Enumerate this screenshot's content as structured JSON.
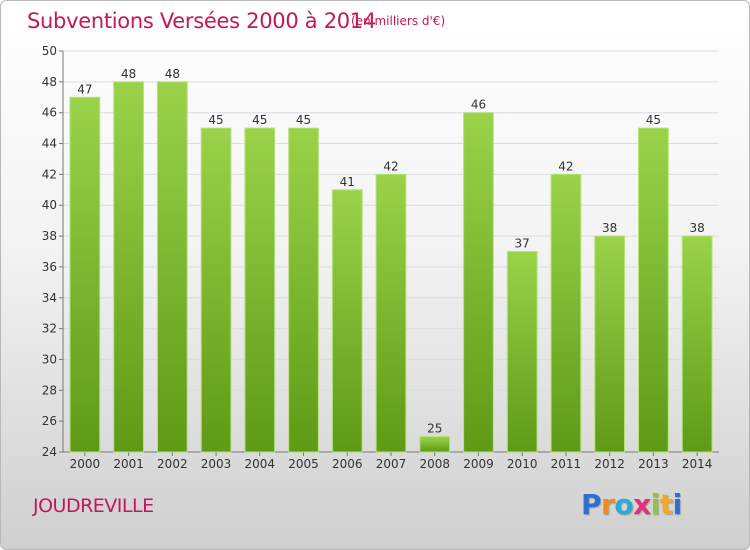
{
  "header": {
    "title": "Subventions Versées 2000 à 2014",
    "unit": "(en milliers d'€)"
  },
  "footer": {
    "commune": "JOUDREVILLE",
    "brand_letters": [
      {
        "char": "P",
        "color": "#2f6fd0"
      },
      {
        "char": "r",
        "color": "#f08a1c"
      },
      {
        "char": "o",
        "color": "#2aa8d8"
      },
      {
        "char": "x",
        "color": "#e62f7a"
      },
      {
        "char": "i",
        "color": "#8cc63f"
      },
      {
        "char": "t",
        "color": "#f5a623"
      },
      {
        "char": "i",
        "color": "#2f6fd0"
      }
    ]
  },
  "colors": {
    "bar_top": "#9ad34a",
    "bar_bottom": "#5f9a17",
    "bar_edge": "#b5e27a",
    "grid": "#dcdcdc",
    "title": "#c2185b"
  },
  "chart_data": {
    "type": "bar",
    "categories": [
      "2000",
      "2001",
      "2002",
      "2003",
      "2004",
      "2005",
      "2006",
      "2007",
      "2008",
      "2009",
      "2010",
      "2011",
      "2012",
      "2013",
      "2014"
    ],
    "values": [
      47,
      48,
      48,
      45,
      45,
      45,
      41,
      42,
      25,
      46,
      37,
      42,
      38,
      45,
      38
    ],
    "ylim": [
      24,
      50
    ],
    "yticks": [
      24,
      26,
      28,
      30,
      32,
      34,
      36,
      38,
      40,
      42,
      44,
      46,
      48,
      50
    ],
    "grid": true
  }
}
